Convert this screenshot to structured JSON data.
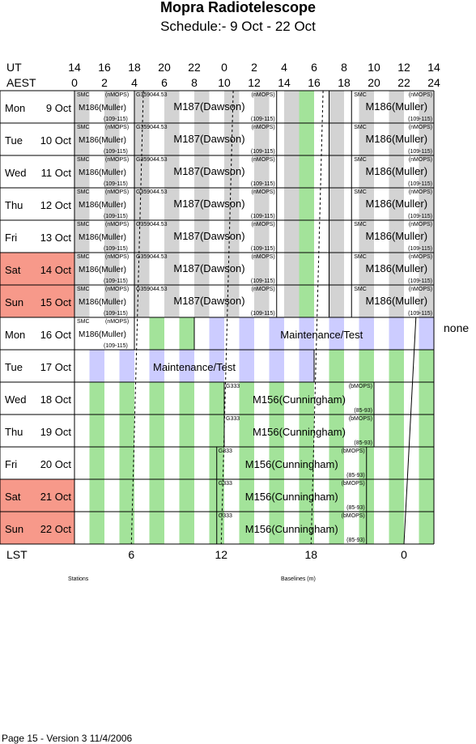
{
  "title": "Mopra Radiotelescope",
  "subtitle": "Schedule:- 9  Oct - 22 Oct",
  "header": {
    "ut_label": "UT",
    "aest_label": "AEST",
    "ut_ticks": [
      "14",
      "16",
      "18",
      "20",
      "22",
      "0",
      "2",
      "4",
      "6",
      "8",
      "10",
      "12",
      "14"
    ],
    "aest_ticks": [
      "0",
      "2",
      "4",
      "6",
      "8",
      "10",
      "12",
      "14",
      "16",
      "18",
      "20",
      "22",
      "24"
    ]
  },
  "days": [
    {
      "dow": "Mon",
      "date": "9  Oct",
      "weekend": false
    },
    {
      "dow": "Tue",
      "date": "10 Oct",
      "weekend": false
    },
    {
      "dow": "Wed",
      "date": "11 Oct",
      "weekend": false
    },
    {
      "dow": "Thu",
      "date": "12 Oct",
      "weekend": false
    },
    {
      "dow": "Fri",
      "date": "13 Oct",
      "weekend": false
    },
    {
      "dow": "Sat",
      "date": "14 Oct",
      "weekend": true
    },
    {
      "dow": "Sun",
      "date": "15 Oct",
      "weekend": true
    },
    {
      "dow": "Mon",
      "date": "16 Oct",
      "weekend": false
    },
    {
      "dow": "Tue",
      "date": "17 Oct",
      "weekend": false
    },
    {
      "dow": "Wed",
      "date": "18 Oct",
      "weekend": false
    },
    {
      "dow": "Thu",
      "date": "19 Oct",
      "weekend": false
    },
    {
      "dow": "Fri",
      "date": "20 Oct",
      "weekend": false
    },
    {
      "dow": "Sat",
      "date": "21 Oct",
      "weekend": true
    },
    {
      "dow": "Sun",
      "date": "22 Oct",
      "weekend": true
    }
  ],
  "blocks": {
    "smc": "SMC",
    "nmops": "(nMOPS)",
    "bmops": "(bMOPS)",
    "m186": "M186(Muller)",
    "m187": "M187(Dawson)",
    "m156": "M156(Cunningham)",
    "g": "G",
    "g_src": "G359044.53",
    "g333": "G333",
    "range_109": "(109-115)",
    "range_85": "(85-93)",
    "maint": "Maintenance/Test",
    "none": "none"
  },
  "footer": {
    "lst_label": "LST",
    "lst_ticks": [
      "6",
      "12",
      "18",
      "0"
    ],
    "stations": "Stations",
    "baselines": "Baselines (m)",
    "version": "Page 15 - Version 3  11/4/2006"
  },
  "colors": {
    "grey": "#d3d3d3",
    "green": "#a3e39a",
    "blue": "#ccccff",
    "weekend": "#f7998a"
  }
}
